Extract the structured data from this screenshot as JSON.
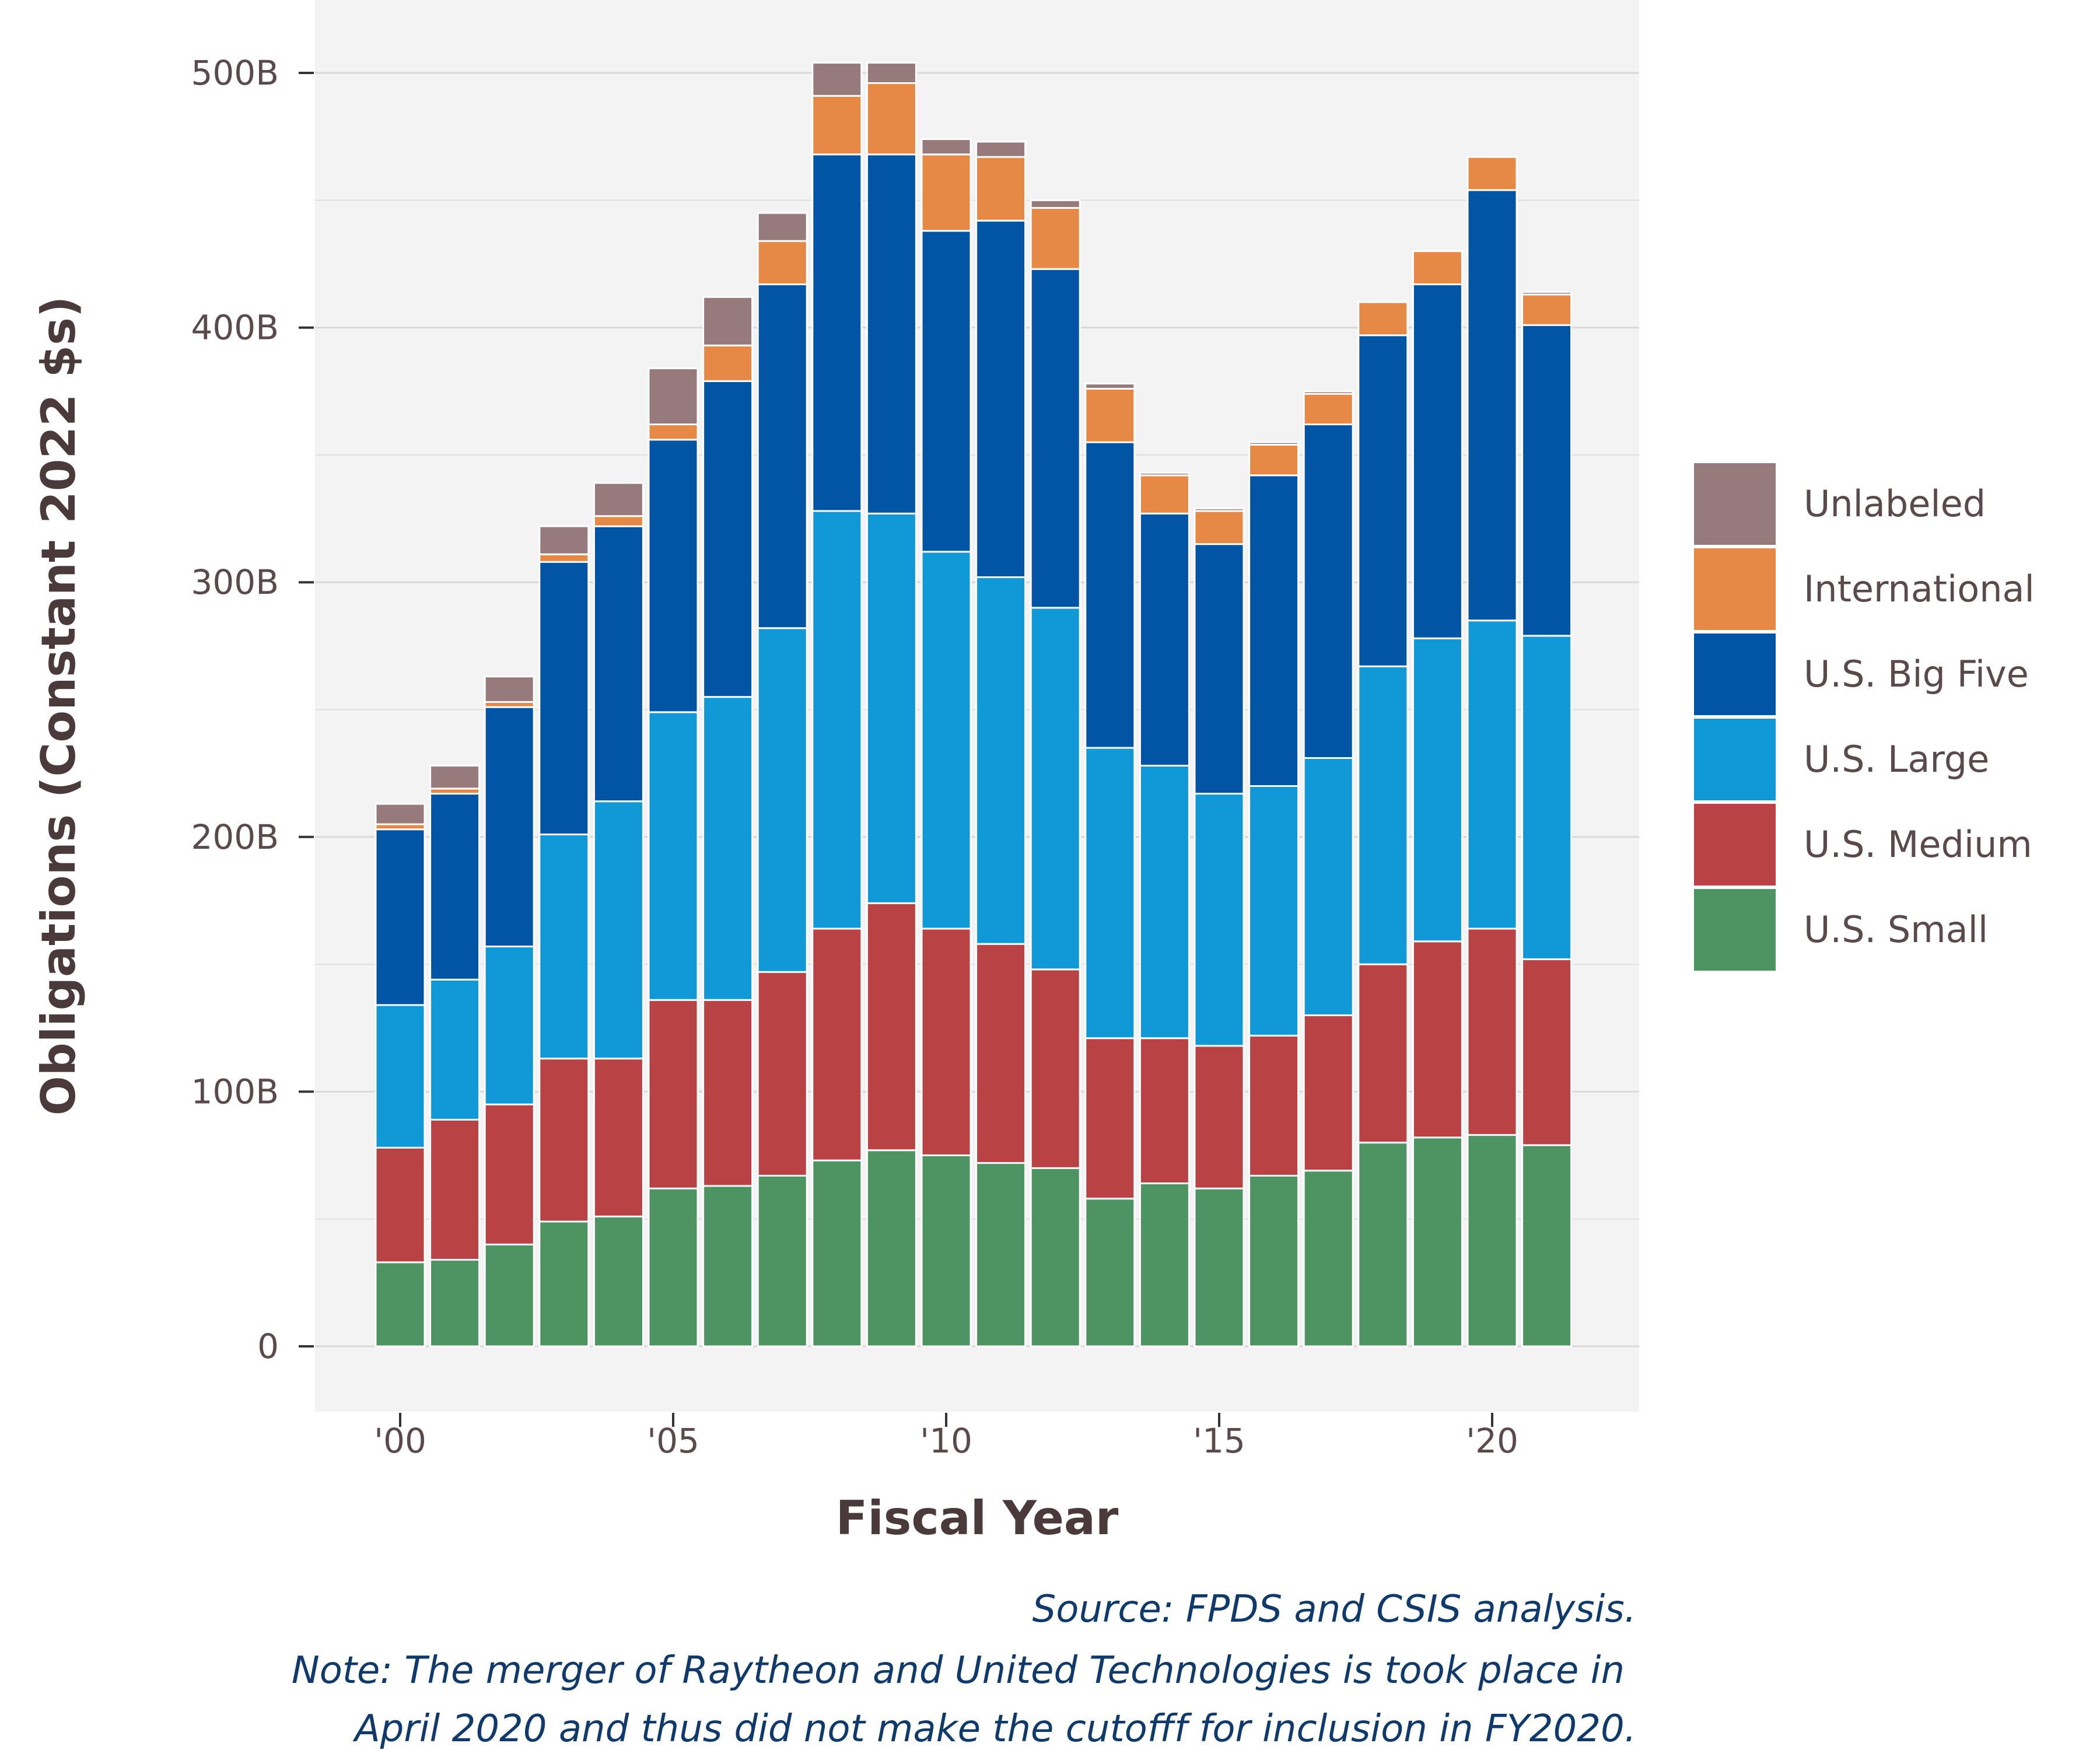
{
  "chart_data": {
    "type": "bar",
    "stacked": true,
    "xlabel": "Fiscal Year",
    "ylabel": "Obligations (Constant 2022 $s)",
    "ylim": [
      -25,
      530
    ],
    "yticks": [
      0,
      100,
      200,
      300,
      400,
      500
    ],
    "ytick_labels": [
      "0",
      "100B",
      "200B",
      "300B",
      "400B",
      "500B"
    ],
    "x": [
      2000,
      2001,
      2002,
      2003,
      2004,
      2005,
      2006,
      2007,
      2008,
      2009,
      2010,
      2011,
      2012,
      2013,
      2014,
      2015,
      2016,
      2017,
      2018,
      2019,
      2020,
      2021
    ],
    "xlim": [
      1999.2,
      2021.8
    ],
    "xticks": [
      2000,
      2005,
      2010,
      2015,
      2020
    ],
    "xtick_labels": [
      "'00",
      "'05",
      "'10",
      "'15",
      "'20"
    ],
    "grid": true,
    "legend_position": "right",
    "series": [
      {
        "name": "U.S. Small",
        "color": "#4e9462",
        "values": [
          33,
          34,
          40,
          49,
          51,
          62,
          63,
          67,
          73,
          77,
          75,
          72,
          70,
          58,
          64,
          62,
          67,
          69,
          80,
          82,
          83,
          79
        ]
      },
      {
        "name": "U.S. Medium",
        "color": "#b94244",
        "values": [
          45,
          55,
          55,
          64,
          62,
          74,
          73,
          80,
          91,
          97,
          89,
          86,
          78,
          63,
          57,
          56,
          55,
          61,
          70,
          77,
          81,
          73
        ]
      },
      {
        "name": "U.S. Large",
        "color": "#1099d6",
        "values": [
          56,
          55,
          62,
          88,
          101,
          113,
          119,
          135,
          164,
          153,
          148,
          144,
          142,
          114,
          107,
          99,
          98,
          101,
          117,
          119,
          121,
          127
        ]
      },
      {
        "name": "U.S. Big Five",
        "color": "#0254a5",
        "values": [
          69,
          73,
          94,
          107,
          108,
          107,
          124,
          135,
          140,
          141,
          126,
          140,
          133,
          120,
          99,
          98,
          122,
          131,
          130,
          139,
          169,
          122
        ]
      },
      {
        "name": "International",
        "color": "#e78946",
        "values": [
          2,
          2,
          2,
          3,
          4,
          6,
          14,
          17,
          23,
          28,
          30,
          25,
          24,
          21,
          15,
          13,
          12,
          12,
          13,
          13,
          13,
          12
        ]
      },
      {
        "name": "Unlabeled",
        "color": "#977a7c",
        "values": [
          8,
          9,
          10,
          11,
          13,
          22,
          19,
          11,
          13,
          8,
          6,
          6,
          3,
          2,
          1,
          1,
          1,
          1,
          0,
          0,
          0,
          1
        ]
      }
    ],
    "legend_order": [
      "Unlabeled",
      "International",
      "U.S. Big Five",
      "U.S. Large",
      "U.S. Medium",
      "U.S. Small"
    ]
  },
  "caption": {
    "lines": [
      "Source: FPDS and CSIS analysis.",
      "Note: The merger of Raytheon and United Technologies is took place in",
      "April 2020 and thus did not make the cutofff for inclusion in FY2020."
    ]
  },
  "colors": {
    "panel_background": "#f3f3f3",
    "gridline": "#d9d9d9",
    "text": "#5a4a4c",
    "caption": "#0f3a6b"
  }
}
